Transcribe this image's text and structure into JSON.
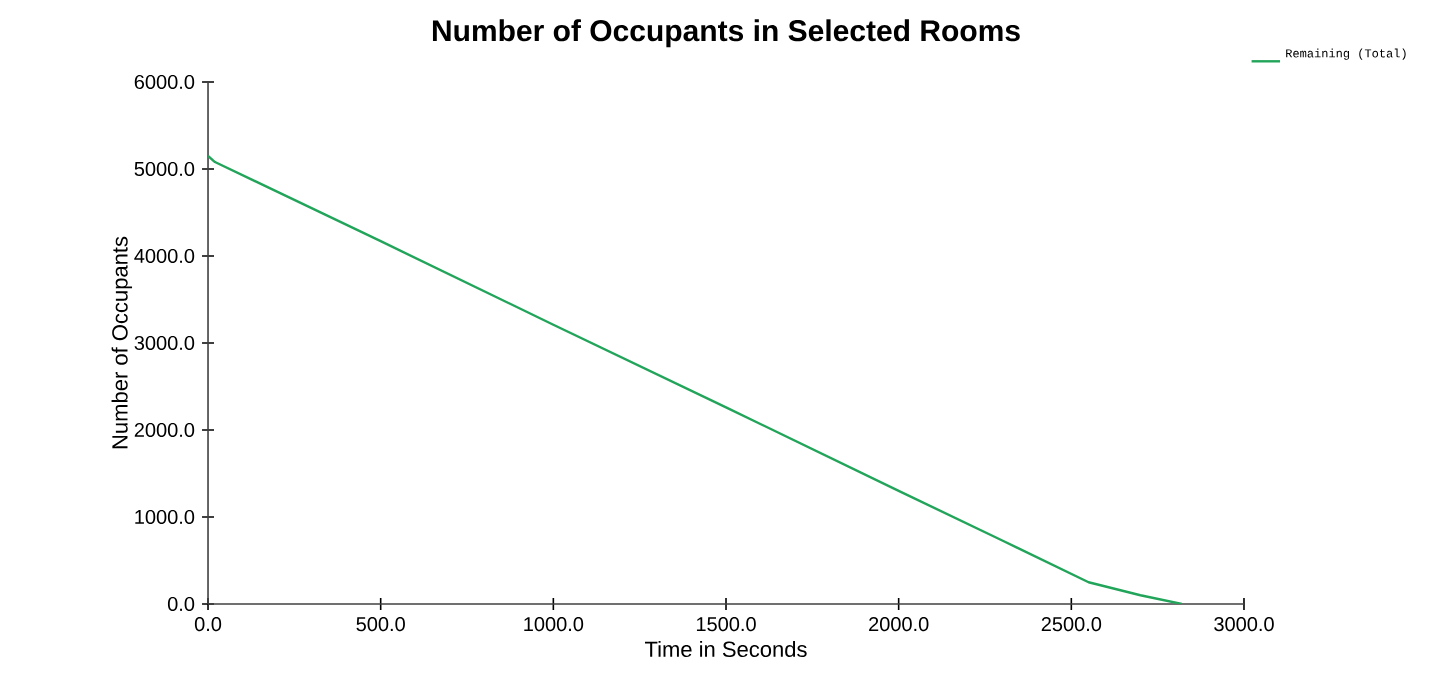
{
  "chart_data": {
    "type": "line",
    "title": "Number of Occupants in Selected Rooms",
    "xlabel": "Time in Seconds",
    "ylabel": "Number of Occupants",
    "x": [
      0,
      20,
      500,
      1000,
      1500,
      2000,
      2300,
      2550,
      2700,
      2820
    ],
    "series": [
      {
        "name": "Remaining (Total)",
        "color": "#22a55a",
        "values": [
          5150,
          5080,
          4170,
          3210,
          2260,
          1300,
          730,
          250,
          100,
          0
        ]
      }
    ],
    "xlim": [
      0,
      3000
    ],
    "ylim": [
      0,
      6000
    ],
    "xticks": [
      {
        "value": 0,
        "label": "0.0"
      },
      {
        "value": 500,
        "label": "500.0"
      },
      {
        "value": 1000,
        "label": "1000.0"
      },
      {
        "value": 1500,
        "label": "1500.0"
      },
      {
        "value": 2000,
        "label": "2000.0"
      },
      {
        "value": 2500,
        "label": "2500.0"
      },
      {
        "value": 3000,
        "label": "3000.0"
      }
    ],
    "yticks": [
      {
        "value": 0,
        "label": "0.0"
      },
      {
        "value": 1000,
        "label": "1000.0"
      },
      {
        "value": 2000,
        "label": "2000.0"
      },
      {
        "value": 3000,
        "label": "3000.0"
      },
      {
        "value": 4000,
        "label": "4000.0"
      },
      {
        "value": 5000,
        "label": "5000.0"
      },
      {
        "value": 6000,
        "label": "6000.0"
      }
    ],
    "grid": false,
    "legend": "top right",
    "marker": "none",
    "line_style": "solid"
  }
}
